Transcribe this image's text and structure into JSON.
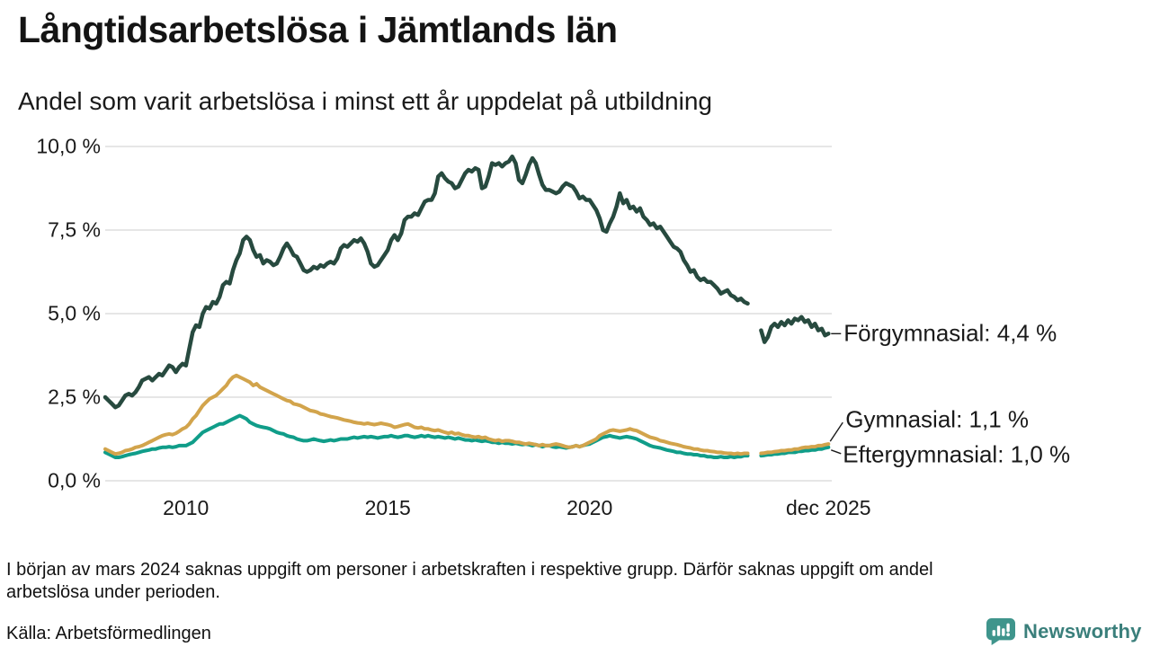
{
  "header": {
    "title": "Långtidsarbetslösa i Jämtlands län",
    "subtitle": "Andel som varit arbetslösa i minst ett år uppdelat på utbildning"
  },
  "footnote": "I början av mars 2024 saknas uppgift om personer i arbetskraften i respektive grupp. Därför saknas uppgift om andel arbetslösa under perioden.",
  "source": "Källa: Arbetsförmedlingen",
  "branding": {
    "logo_text": "Newsworthy",
    "logo_color": "#3f958c",
    "text_color": "#3a7f7b"
  },
  "chart_data": {
    "type": "line",
    "title": "Långtidsarbetslösa i Jämtlands län",
    "subtitle": "Andel som varit arbetslösa i minst ett år uppdelat på utbildning",
    "unit": "%",
    "frequency": "monthly",
    "x_start": "2008-01",
    "x_end": "2025-12",
    "data_gap_months": [
      "2024-01",
      "2024-02",
      "2024-03"
    ],
    "ylim": [
      0,
      10
    ],
    "grid": "horizontal",
    "legend_position": "end-of-line-labels",
    "colors": {
      "grid": "#e3e3e3",
      "text": "#1a1a1a"
    },
    "y_ticks": [
      {
        "value": 10,
        "label": "10,0 %"
      },
      {
        "value": 7.5,
        "label": "7,5 %"
      },
      {
        "value": 5,
        "label": "5,0 %"
      },
      {
        "value": 2.5,
        "label": "2,5 %"
      },
      {
        "value": 0,
        "label": "0,0 %"
      }
    ],
    "x_ticks": [
      {
        "t": 2010,
        "label": "2010"
      },
      {
        "t": 2015,
        "label": "2015"
      },
      {
        "t": 2020,
        "label": "2020"
      },
      {
        "t": 2025.917,
        "label": "dec 2025"
      }
    ],
    "series": [
      {
        "name": "Förgymnasial",
        "end_label": "Förgymnasial: 4,4 %",
        "last_value": 4.4,
        "color": "#274a3f",
        "values": [
          2.5,
          2.4,
          2.3,
          2.2,
          2.25,
          2.4,
          2.55,
          2.6,
          2.55,
          2.65,
          2.8,
          3.0,
          3.05,
          3.1,
          3.0,
          3.1,
          3.2,
          3.15,
          3.3,
          3.45,
          3.4,
          3.25,
          3.4,
          3.5,
          3.45,
          3.95,
          4.45,
          4.65,
          4.6,
          5.0,
          5.2,
          5.15,
          5.35,
          5.3,
          5.5,
          5.85,
          5.95,
          5.9,
          6.3,
          6.6,
          6.8,
          7.2,
          7.3,
          7.2,
          6.9,
          6.7,
          6.75,
          6.5,
          6.6,
          6.55,
          6.45,
          6.5,
          6.7,
          6.95,
          7.1,
          6.95,
          6.75,
          6.7,
          6.5,
          6.3,
          6.25,
          6.3,
          6.4,
          6.35,
          6.45,
          6.4,
          6.5,
          6.55,
          6.5,
          6.65,
          6.95,
          7.05,
          7.0,
          7.1,
          7.2,
          7.15,
          7.25,
          7.1,
          6.85,
          6.5,
          6.4,
          6.45,
          6.6,
          6.75,
          6.9,
          7.2,
          7.35,
          7.2,
          7.4,
          7.8,
          7.9,
          7.9,
          8.0,
          7.95,
          8.15,
          8.35,
          8.4,
          8.4,
          8.6,
          9.1,
          9.2,
          9.05,
          8.95,
          8.9,
          8.75,
          8.8,
          9.0,
          9.2,
          9.3,
          9.25,
          9.35,
          9.3,
          8.75,
          8.8,
          9.1,
          9.5,
          9.45,
          9.5,
          9.4,
          9.5,
          9.55,
          9.7,
          9.5,
          9.0,
          8.9,
          9.15,
          9.45,
          9.65,
          9.5,
          9.15,
          8.85,
          8.7,
          8.7,
          8.65,
          8.6,
          8.65,
          8.8,
          8.9,
          8.85,
          8.8,
          8.65,
          8.45,
          8.5,
          8.4,
          8.4,
          8.25,
          8.1,
          7.85,
          7.5,
          7.45,
          7.7,
          7.9,
          8.2,
          8.6,
          8.3,
          8.4,
          8.15,
          8.2,
          8.05,
          8.15,
          7.9,
          7.8,
          7.65,
          7.7,
          7.55,
          7.6,
          7.45,
          7.3,
          7.15,
          7.0,
          6.95,
          6.85,
          6.6,
          6.45,
          6.25,
          6.3,
          6.1,
          6.0,
          6.05,
          5.95,
          5.95,
          5.85,
          5.75,
          5.6,
          5.65,
          5.7,
          5.55,
          5.5,
          5.4,
          5.45,
          5.35,
          5.3,
          null,
          null,
          null,
          4.5,
          4.15,
          4.3,
          4.6,
          4.7,
          4.6,
          4.75,
          4.65,
          4.8,
          4.7,
          4.85,
          4.8,
          4.9,
          4.75,
          4.8,
          4.6,
          4.7,
          4.5,
          4.55,
          4.35,
          4.4
        ]
      },
      {
        "name": "Gymnasial",
        "end_label": "Gymnasial: 1,1 %",
        "last_value": 1.1,
        "color": "#d2a44c",
        "values": [
          0.95,
          0.9,
          0.85,
          0.8,
          0.82,
          0.85,
          0.9,
          0.92,
          0.95,
          1.0,
          1.02,
          1.05,
          1.1,
          1.15,
          1.2,
          1.25,
          1.3,
          1.35,
          1.38,
          1.4,
          1.38,
          1.42,
          1.48,
          1.55,
          1.6,
          1.7,
          1.85,
          1.95,
          2.1,
          2.25,
          2.35,
          2.45,
          2.5,
          2.55,
          2.65,
          2.75,
          2.85,
          3.0,
          3.1,
          3.15,
          3.1,
          3.05,
          3.0,
          2.95,
          2.85,
          2.9,
          2.8,
          2.75,
          2.7,
          2.65,
          2.6,
          2.55,
          2.5,
          2.45,
          2.4,
          2.38,
          2.3,
          2.28,
          2.25,
          2.2,
          2.15,
          2.1,
          2.08,
          2.05,
          2.0,
          1.98,
          1.95,
          1.92,
          1.9,
          1.88,
          1.85,
          1.82,
          1.8,
          1.78,
          1.75,
          1.73,
          1.72,
          1.7,
          1.72,
          1.7,
          1.68,
          1.7,
          1.72,
          1.7,
          1.68,
          1.65,
          1.6,
          1.62,
          1.65,
          1.68,
          1.7,
          1.65,
          1.6,
          1.58,
          1.6,
          1.55,
          1.55,
          1.52,
          1.5,
          1.52,
          1.48,
          1.45,
          1.42,
          1.45,
          1.4,
          1.42,
          1.38,
          1.35,
          1.35,
          1.32,
          1.3,
          1.32,
          1.28,
          1.3,
          1.25,
          1.22,
          1.2,
          1.22,
          1.18,
          1.2,
          1.2,
          1.18,
          1.15,
          1.15,
          1.12,
          1.1,
          1.12,
          1.1,
          1.08,
          1.05,
          1.08,
          1.05,
          1.05,
          1.08,
          1.1,
          1.08,
          1.05,
          1.02,
          1.0,
          1.02,
          1.05,
          1.02,
          1.05,
          1.1,
          1.15,
          1.2,
          1.25,
          1.35,
          1.4,
          1.45,
          1.5,
          1.52,
          1.5,
          1.48,
          1.5,
          1.52,
          1.55,
          1.52,
          1.5,
          1.45,
          1.4,
          1.35,
          1.3,
          1.28,
          1.25,
          1.2,
          1.18,
          1.15,
          1.12,
          1.1,
          1.08,
          1.05,
          1.02,
          1.0,
          0.98,
          0.95,
          0.95,
          0.92,
          0.9,
          0.9,
          0.88,
          0.87,
          0.85,
          0.85,
          0.83,
          0.82,
          0.82,
          0.8,
          0.82,
          0.8,
          0.82,
          0.82,
          null,
          null,
          null,
          0.82,
          0.83,
          0.85,
          0.85,
          0.87,
          0.88,
          0.9,
          0.9,
          0.92,
          0.92,
          0.95,
          0.95,
          0.98,
          1.0,
          1.0,
          1.02,
          1.02,
          1.05,
          1.05,
          1.08,
          1.1
        ]
      },
      {
        "name": "Eftergymnasial",
        "end_label": "Eftergymnasial: 1,0 %",
        "last_value": 1.0,
        "color": "#109d89",
        "values": [
          0.85,
          0.8,
          0.75,
          0.7,
          0.7,
          0.72,
          0.75,
          0.78,
          0.8,
          0.82,
          0.85,
          0.88,
          0.9,
          0.92,
          0.95,
          0.95,
          0.98,
          1.0,
          1.0,
          1.02,
          1.0,
          1.02,
          1.05,
          1.05,
          1.05,
          1.1,
          1.15,
          1.25,
          1.35,
          1.45,
          1.5,
          1.55,
          1.6,
          1.65,
          1.7,
          1.7,
          1.75,
          1.8,
          1.85,
          1.9,
          1.95,
          1.9,
          1.85,
          1.75,
          1.7,
          1.65,
          1.62,
          1.6,
          1.58,
          1.55,
          1.5,
          1.45,
          1.42,
          1.4,
          1.35,
          1.32,
          1.3,
          1.25,
          1.22,
          1.2,
          1.2,
          1.22,
          1.25,
          1.22,
          1.2,
          1.18,
          1.2,
          1.22,
          1.2,
          1.22,
          1.25,
          1.25,
          1.25,
          1.28,
          1.3,
          1.28,
          1.3,
          1.32,
          1.3,
          1.32,
          1.3,
          1.28,
          1.3,
          1.32,
          1.32,
          1.35,
          1.32,
          1.3,
          1.32,
          1.35,
          1.35,
          1.32,
          1.3,
          1.32,
          1.35,
          1.32,
          1.35,
          1.32,
          1.3,
          1.32,
          1.3,
          1.28,
          1.3,
          1.28,
          1.25,
          1.28,
          1.25,
          1.22,
          1.22,
          1.2,
          1.22,
          1.2,
          1.18,
          1.2,
          1.18,
          1.15,
          1.15,
          1.12,
          1.15,
          1.12,
          1.12,
          1.1,
          1.12,
          1.1,
          1.08,
          1.1,
          1.08,
          1.05,
          1.08,
          1.05,
          1.02,
          1.05,
          1.05,
          1.02,
          1.0,
          1.02,
          1.0,
          0.98,
          1.0,
          1.02,
          1.05,
          1.02,
          1.05,
          1.08,
          1.1,
          1.15,
          1.2,
          1.25,
          1.3,
          1.32,
          1.35,
          1.32,
          1.3,
          1.28,
          1.3,
          1.32,
          1.3,
          1.28,
          1.25,
          1.2,
          1.15,
          1.1,
          1.05,
          1.02,
          1.0,
          0.98,
          0.95,
          0.92,
          0.9,
          0.88,
          0.85,
          0.85,
          0.82,
          0.8,
          0.8,
          0.78,
          0.78,
          0.75,
          0.75,
          0.72,
          0.72,
          0.7,
          0.7,
          0.72,
          0.7,
          0.7,
          0.72,
          0.7,
          0.72,
          0.72,
          0.75,
          0.75,
          null,
          null,
          null,
          0.75,
          0.76,
          0.78,
          0.78,
          0.8,
          0.8,
          0.82,
          0.82,
          0.85,
          0.85,
          0.85,
          0.88,
          0.88,
          0.9,
          0.9,
          0.92,
          0.92,
          0.95,
          0.95,
          0.98,
          1.0
        ]
      }
    ]
  }
}
